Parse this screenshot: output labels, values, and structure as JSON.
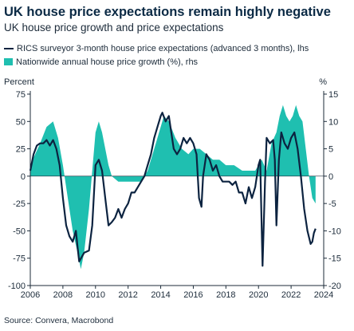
{
  "chart_data": {
    "type": "line",
    "title": "UK house price expectations remain highly negative",
    "subtitle": "UK house price growth and price expectations",
    "ylabel_left": "Percent",
    "ylabel_right": "%",
    "source": "Source: Convera, Macrobond",
    "xlim": [
      2006,
      2024
    ],
    "x_ticks": [
      2006,
      2008,
      2010,
      2012,
      2014,
      2016,
      2018,
      2020,
      2022,
      2024
    ],
    "ylim_left": [
      -100,
      75
    ],
    "y_ticks_left": [
      75,
      50,
      25,
      0,
      -25,
      -50,
      -75,
      -100
    ],
    "ylim_right": [
      -20,
      15
    ],
    "y_ticks_right": [
      15,
      10,
      5,
      0,
      -5,
      -10,
      -15,
      -20
    ],
    "grid": false,
    "legend_position": "top-left",
    "series": [
      {
        "name": "RICS surveyor 3-month house price expectations (advanced 3 months), lhs",
        "type": "line",
        "axis": "left",
        "color": "#0c2340",
        "points": [
          [
            2006.0,
            5
          ],
          [
            2006.2,
            20
          ],
          [
            2006.4,
            28
          ],
          [
            2006.6,
            30
          ],
          [
            2006.8,
            30
          ],
          [
            2007.0,
            33
          ],
          [
            2007.2,
            28
          ],
          [
            2007.4,
            33
          ],
          [
            2007.6,
            25
          ],
          [
            2007.8,
            10
          ],
          [
            2008.0,
            -20
          ],
          [
            2008.2,
            -45
          ],
          [
            2008.4,
            -55
          ],
          [
            2008.6,
            -60
          ],
          [
            2008.8,
            -50
          ],
          [
            2008.9,
            -65
          ],
          [
            2009.0,
            -78
          ],
          [
            2009.3,
            -70
          ],
          [
            2009.6,
            -68
          ],
          [
            2009.8,
            -45
          ],
          [
            2010.0,
            10
          ],
          [
            2010.2,
            15
          ],
          [
            2010.4,
            5
          ],
          [
            2010.6,
            -20
          ],
          [
            2010.8,
            -45
          ],
          [
            2011.0,
            -42
          ],
          [
            2011.2,
            -38
          ],
          [
            2011.4,
            -30
          ],
          [
            2011.6,
            -38
          ],
          [
            2011.8,
            -30
          ],
          [
            2012.0,
            -25
          ],
          [
            2012.2,
            -15
          ],
          [
            2012.4,
            -15
          ],
          [
            2012.6,
            -10
          ],
          [
            2012.8,
            -5
          ],
          [
            2013.0,
            0
          ],
          [
            2013.2,
            10
          ],
          [
            2013.4,
            20
          ],
          [
            2013.6,
            35
          ],
          [
            2013.8,
            45
          ],
          [
            2014.0,
            55
          ],
          [
            2014.1,
            58
          ],
          [
            2014.3,
            50
          ],
          [
            2014.5,
            55
          ],
          [
            2014.6,
            45
          ],
          [
            2014.8,
            25
          ],
          [
            2015.0,
            20
          ],
          [
            2015.2,
            25
          ],
          [
            2015.4,
            35
          ],
          [
            2015.6,
            30
          ],
          [
            2015.8,
            35
          ],
          [
            2016.0,
            30
          ],
          [
            2016.2,
            20
          ],
          [
            2016.35,
            -20
          ],
          [
            2016.5,
            -28
          ],
          [
            2016.6,
            0
          ],
          [
            2016.8,
            20
          ],
          [
            2017.0,
            15
          ],
          [
            2017.2,
            5
          ],
          [
            2017.4,
            10
          ],
          [
            2017.6,
            0
          ],
          [
            2017.8,
            -5
          ],
          [
            2018.0,
            -5
          ],
          [
            2018.2,
            -5
          ],
          [
            2018.4,
            -8
          ],
          [
            2018.6,
            -5
          ],
          [
            2018.8,
            -15
          ],
          [
            2019.0,
            -15
          ],
          [
            2019.2,
            -25
          ],
          [
            2019.4,
            -10
          ],
          [
            2019.6,
            -20
          ],
          [
            2019.8,
            -10
          ],
          [
            2020.0,
            10
          ],
          [
            2020.1,
            15
          ],
          [
            2020.25,
            -82
          ],
          [
            2020.4,
            -5
          ],
          [
            2020.5,
            35
          ],
          [
            2020.7,
            30
          ],
          [
            2020.9,
            33
          ],
          [
            2021.0,
            15
          ],
          [
            2021.1,
            -45
          ],
          [
            2021.25,
            15
          ],
          [
            2021.4,
            40
          ],
          [
            2021.6,
            30
          ],
          [
            2021.8,
            25
          ],
          [
            2022.0,
            35
          ],
          [
            2022.2,
            40
          ],
          [
            2022.4,
            25
          ],
          [
            2022.6,
            0
          ],
          [
            2022.8,
            -30
          ],
          [
            2023.0,
            -50
          ],
          [
            2023.2,
            -62
          ],
          [
            2023.3,
            -60
          ],
          [
            2023.4,
            -52
          ],
          [
            2023.5,
            -48
          ]
        ]
      },
      {
        "name": "Nationwide annual house price growth (%), rhs",
        "type": "area",
        "axis": "right",
        "color": "#1fbfb0",
        "points": [
          [
            2006.0,
            2
          ],
          [
            2006.3,
            4
          ],
          [
            2006.6,
            6
          ],
          [
            2007.0,
            9
          ],
          [
            2007.4,
            10
          ],
          [
            2007.7,
            7
          ],
          [
            2008.0,
            2
          ],
          [
            2008.3,
            -4
          ],
          [
            2008.6,
            -10
          ],
          [
            2008.9,
            -14
          ],
          [
            2009.1,
            -17
          ],
          [
            2009.3,
            -14
          ],
          [
            2009.6,
            -6
          ],
          [
            2010.0,
            8
          ],
          [
            2010.2,
            10
          ],
          [
            2010.4,
            8
          ],
          [
            2010.8,
            2
          ],
          [
            2011.0,
            0
          ],
          [
            2011.4,
            -1
          ],
          [
            2011.8,
            -1
          ],
          [
            2012.2,
            -1
          ],
          [
            2012.6,
            -1
          ],
          [
            2012.8,
            -1
          ],
          [
            2013.2,
            1
          ],
          [
            2013.6,
            5
          ],
          [
            2013.9,
            8
          ],
          [
            2014.2,
            11
          ],
          [
            2014.5,
            10
          ],
          [
            2014.9,
            7
          ],
          [
            2015.3,
            5
          ],
          [
            2015.7,
            4
          ],
          [
            2016.0,
            5
          ],
          [
            2016.4,
            5
          ],
          [
            2016.8,
            4
          ],
          [
            2017.2,
            3
          ],
          [
            2017.6,
            3
          ],
          [
            2018.0,
            2
          ],
          [
            2018.5,
            2
          ],
          [
            2019.0,
            1
          ],
          [
            2019.5,
            1
          ],
          [
            2019.8,
            1
          ],
          [
            2020.2,
            3
          ],
          [
            2020.5,
            1
          ],
          [
            2020.8,
            6
          ],
          [
            2021.1,
            8
          ],
          [
            2021.3,
            11
          ],
          [
            2021.5,
            13
          ],
          [
            2021.7,
            11
          ],
          [
            2021.9,
            10
          ],
          [
            2022.1,
            11
          ],
          [
            2022.3,
            13
          ],
          [
            2022.5,
            11
          ],
          [
            2022.7,
            10
          ],
          [
            2022.9,
            5
          ],
          [
            2023.1,
            0
          ],
          [
            2023.3,
            -4
          ],
          [
            2023.5,
            -5
          ]
        ]
      }
    ]
  }
}
